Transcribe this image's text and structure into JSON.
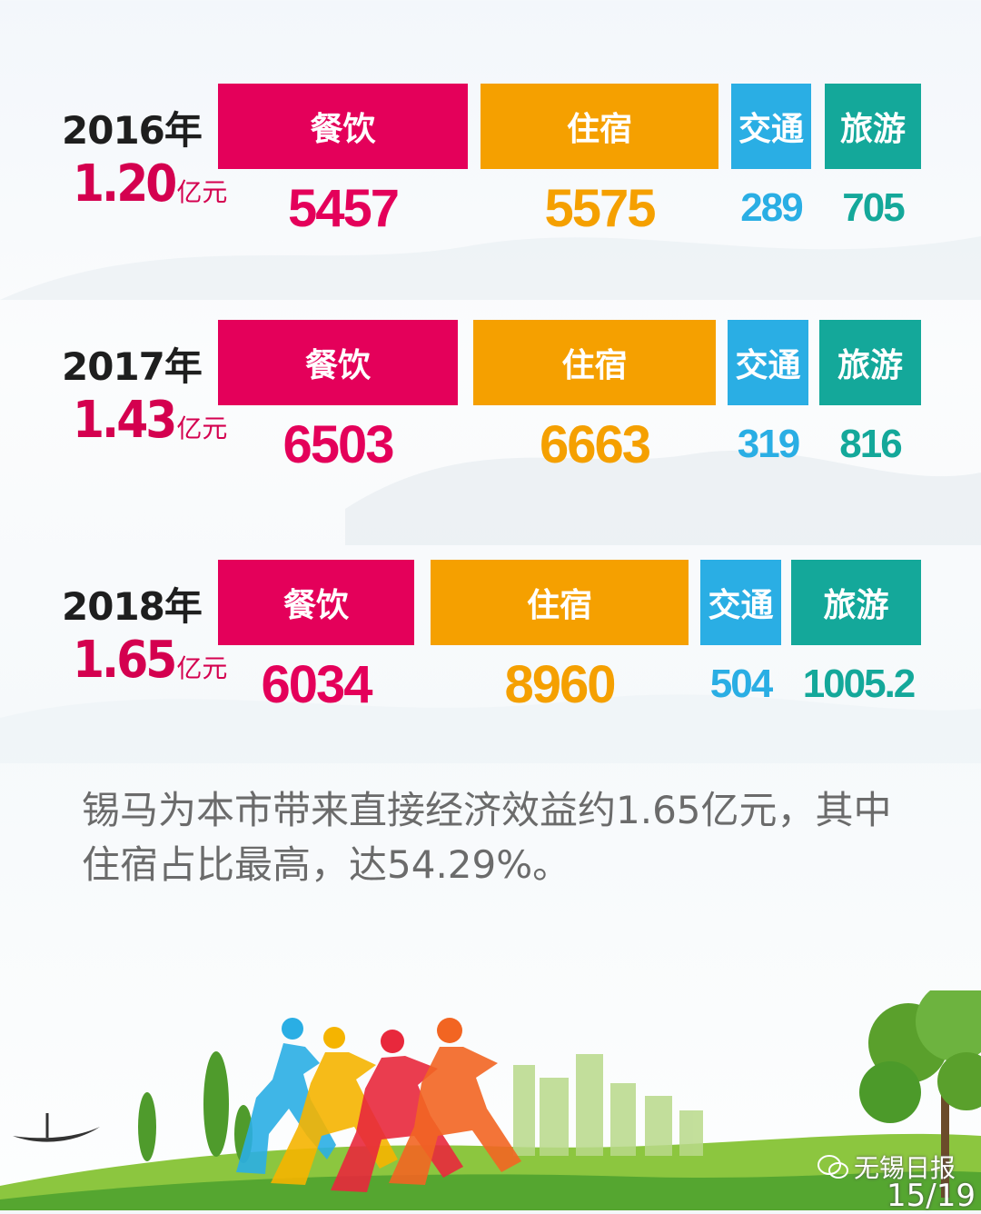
{
  "colors": {
    "dining": "#e4005a",
    "lodging": "#f5a000",
    "transport": "#2aaee4",
    "tourism": "#14a89a",
    "total": "#d4004f"
  },
  "chart_data": [
    {
      "type": "bar",
      "title": "2016年",
      "total": "1.20",
      "unit": "亿元",
      "categories": [
        "餐饮",
        "住宿",
        "交通",
        "旅游"
      ],
      "values": [
        5457,
        5575,
        289,
        705
      ],
      "value_labels": [
        "5457",
        "5575",
        "289",
        "705"
      ]
    },
    {
      "type": "bar",
      "title": "2017年",
      "total": "1.43",
      "unit": "亿元",
      "categories": [
        "餐饮",
        "住宿",
        "交通",
        "旅游"
      ],
      "values": [
        6503,
        6663,
        319,
        816
      ],
      "value_labels": [
        "6503",
        "6663",
        "319",
        "816"
      ]
    },
    {
      "type": "bar",
      "title": "2018年",
      "total": "1.65",
      "unit": "亿元",
      "categories": [
        "餐饮",
        "住宿",
        "交通",
        "旅游"
      ],
      "values": [
        6034,
        8960,
        504,
        1005.2
      ],
      "value_labels": [
        "6034",
        "8960",
        "504",
        "1005.2"
      ]
    }
  ],
  "caption": "锡马为本市带来直接经济效益约1.65亿元，其中住宿占比最高，达54.29%。",
  "watermark": "无锡日报",
  "pager": "15/19"
}
